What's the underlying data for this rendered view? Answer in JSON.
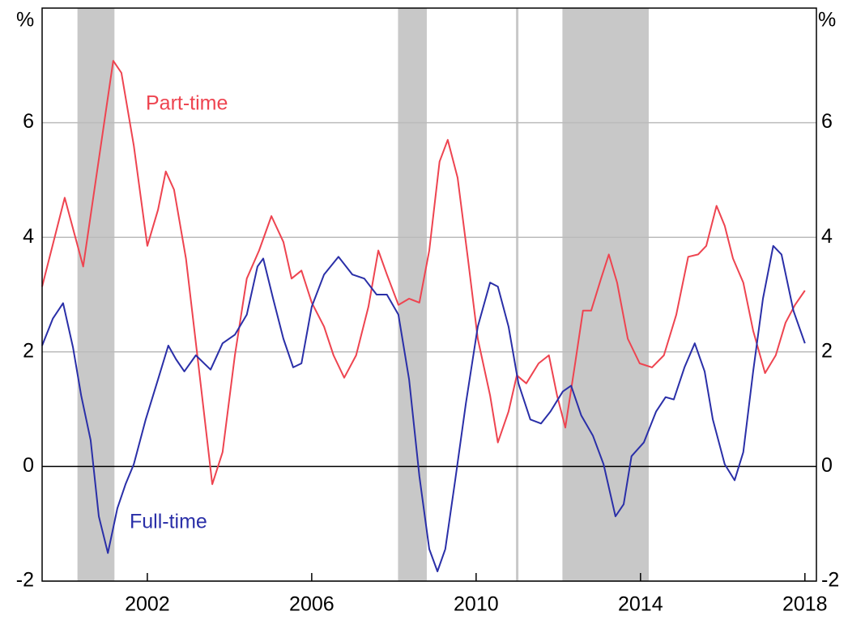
{
  "chart_data": {
    "type": "line",
    "y_unit": "%",
    "annotations": [
      "Part-time",
      "Full-time"
    ],
    "xlim": [
      1999.44,
      2018.28
    ],
    "xticks": [
      2002,
      2006,
      2010,
      2014,
      2018
    ],
    "ylim": [
      -2,
      8
    ],
    "yticks": [
      -2,
      0,
      2,
      4,
      6
    ],
    "grid": true,
    "shaded": [
      [
        2000.3,
        2001.2
      ],
      [
        2008.1,
        2008.8
      ],
      [
        2012.1,
        2014.2
      ]
    ],
    "shade_color": "#c8c8c8",
    "vlines": [
      2011
    ],
    "series": [
      {
        "name": "Part-time",
        "color": "#ee4450",
        "x": [
          1999.44,
          1999.99,
          2000.44,
          2001.17,
          2001.37,
          2001.67,
          2002.0,
          2002.26,
          2002.45,
          2002.65,
          2002.94,
          2003.24,
          2003.58,
          2003.83,
          2004.13,
          2004.42,
          2004.72,
          2005.02,
          2005.31,
          2005.51,
          2005.75,
          2006.0,
          2006.3,
          2006.53,
          2006.79,
          2007.08,
          2007.38,
          2007.62,
          2007.83,
          2008.11,
          2008.37,
          2008.62,
          2008.86,
          2009.11,
          2009.31,
          2009.55,
          2009.8,
          2010.04,
          2010.34,
          2010.53,
          2010.79,
          2010.99,
          2011.22,
          2011.52,
          2011.77,
          2011.97,
          2012.17,
          2012.41,
          2012.6,
          2012.8,
          2013.04,
          2013.23,
          2013.43,
          2013.69,
          2013.98,
          2014.28,
          2014.57,
          2014.87,
          2015.16,
          2015.4,
          2015.6,
          2015.85,
          2016.05,
          2016.25,
          2016.5,
          2016.74,
          2017.03,
          2017.29,
          2017.53,
          2017.76,
          2018.0
        ],
        "values": [
          3.14,
          4.69,
          3.49,
          7.08,
          6.87,
          5.6,
          3.85,
          4.48,
          5.15,
          4.83,
          3.63,
          1.8,
          -0.31,
          0.25,
          1.94,
          3.28,
          3.77,
          4.37,
          3.92,
          3.28,
          3.42,
          2.86,
          2.44,
          1.94,
          1.55,
          1.94,
          2.79,
          3.77,
          3.35,
          2.82,
          2.93,
          2.86,
          3.77,
          5.32,
          5.7,
          5.04,
          3.63,
          2.23,
          1.24,
          0.42,
          0.96,
          1.59,
          1.45,
          1.8,
          1.94,
          1.24,
          0.68,
          1.8,
          2.72,
          2.72,
          3.28,
          3.7,
          3.21,
          2.23,
          1.8,
          1.73,
          1.94,
          2.65,
          3.66,
          3.7,
          3.85,
          4.55,
          4.2,
          3.63,
          3.21,
          2.37,
          1.63,
          1.94,
          2.51,
          2.82,
          3.07
        ]
      },
      {
        "name": "Full-time",
        "color": "#2a2fa8",
        "x": [
          1999.44,
          1999.7,
          1999.95,
          2000.19,
          2000.39,
          2000.62,
          2000.82,
          2001.04,
          2001.27,
          2001.47,
          2001.67,
          2001.96,
          2002.26,
          2002.51,
          2002.7,
          2002.9,
          2003.18,
          2003.54,
          2003.83,
          2004.13,
          2004.42,
          2004.68,
          2004.82,
          2005.06,
          2005.31,
          2005.55,
          2005.75,
          2006.0,
          2006.3,
          2006.65,
          2006.99,
          2007.28,
          2007.58,
          2007.83,
          2008.11,
          2008.37,
          2008.62,
          2008.86,
          2009.06,
          2009.25,
          2009.49,
          2009.75,
          2010.04,
          2010.34,
          2010.53,
          2010.79,
          2011.03,
          2011.32,
          2011.58,
          2011.81,
          2012.11,
          2012.31,
          2012.56,
          2012.84,
          2013.1,
          2013.39,
          2013.59,
          2013.78,
          2014.08,
          2014.38,
          2014.61,
          2014.81,
          2015.07,
          2015.32,
          2015.56,
          2015.76,
          2016.05,
          2016.29,
          2016.5,
          2016.74,
          2016.98,
          2017.23,
          2017.43,
          2017.72,
          2018.0
        ],
        "values": [
          2.11,
          2.58,
          2.85,
          2.08,
          1.24,
          0.46,
          -0.87,
          -1.51,
          -0.73,
          -0.31,
          0.04,
          0.82,
          1.52,
          2.11,
          1.87,
          1.66,
          1.94,
          1.69,
          2.15,
          2.3,
          2.65,
          3.49,
          3.63,
          2.93,
          2.23,
          1.73,
          1.8,
          2.79,
          3.35,
          3.66,
          3.35,
          3.28,
          3.0,
          3.0,
          2.65,
          1.52,
          -0.17,
          -1.44,
          -1.83,
          -1.44,
          -0.24,
          1.1,
          2.44,
          3.21,
          3.14,
          2.44,
          1.45,
          0.82,
          0.75,
          0.96,
          1.31,
          1.41,
          0.89,
          0.54,
          0.04,
          -0.87,
          -0.66,
          0.18,
          0.42,
          0.96,
          1.21,
          1.17,
          1.73,
          2.15,
          1.66,
          0.82,
          0.04,
          -0.24,
          0.25,
          1.66,
          2.93,
          3.85,
          3.7,
          2.72,
          2.15
        ]
      }
    ]
  }
}
